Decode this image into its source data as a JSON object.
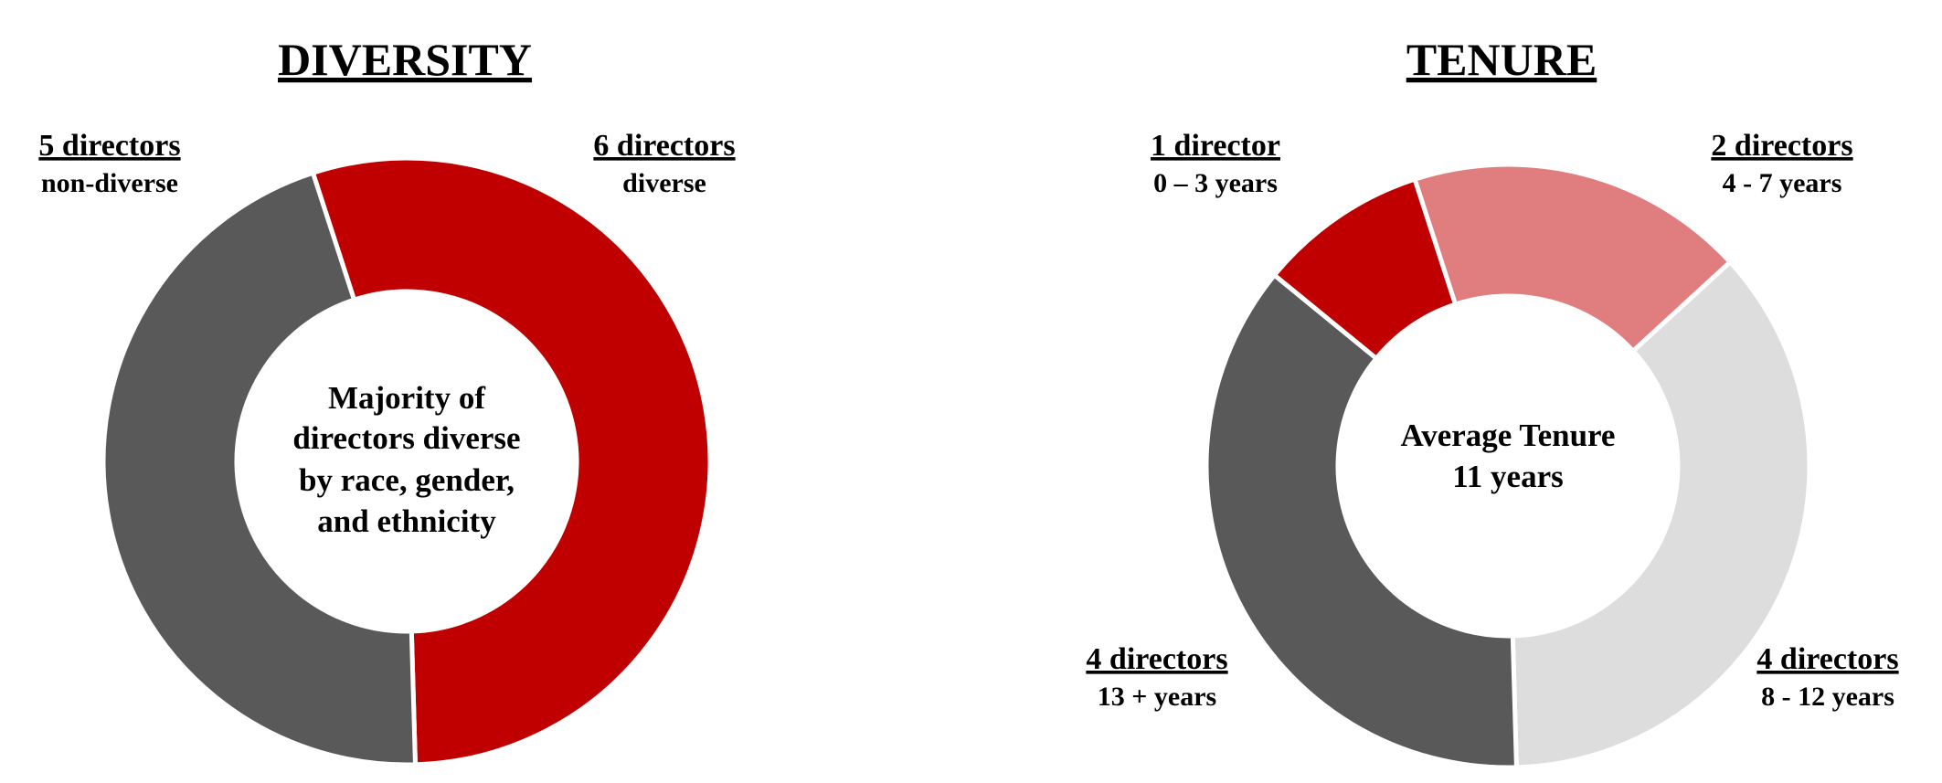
{
  "chart_data": [
    {
      "type": "pie",
      "title": "DIVERSITY",
      "center_text": [
        "Majority of",
        "directors diverse",
        "by race, gender,",
        "and ethnicity"
      ],
      "slices": [
        {
          "label": "6 directors",
          "sublabel": "diverse",
          "value": 6,
          "color": "#C00000"
        },
        {
          "label": "5 directors",
          "sublabel": "non-diverse",
          "value": 5,
          "color": "#595959"
        }
      ]
    },
    {
      "type": "pie",
      "title": "TENURE",
      "center_text": [
        "Average Tenure",
        "11 years"
      ],
      "slices": [
        {
          "label": "2 directors",
          "sublabel": "4 - 7 years",
          "value": 2,
          "color": "#E07E7F"
        },
        {
          "label": "4 directors",
          "sublabel": "8 - 12 years",
          "value": 4,
          "color": "#DDDDDD"
        },
        {
          "label": "4 directors",
          "sublabel": "13 + years",
          "value": 4,
          "color": "#595959"
        },
        {
          "label": "1 director",
          "sublabel": "0 – 3 years",
          "value": 1,
          "color": "#C00000"
        }
      ]
    }
  ]
}
